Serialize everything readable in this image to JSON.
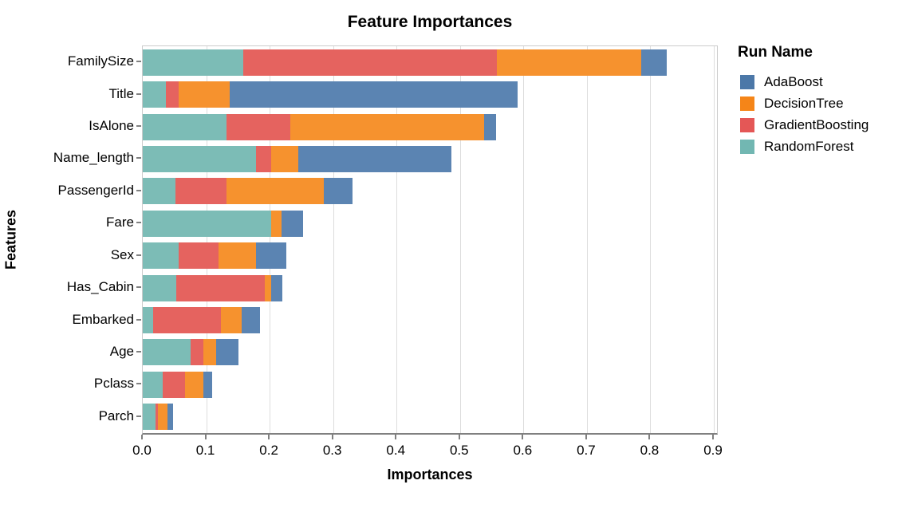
{
  "chart_data": {
    "type": "bar",
    "orientation": "horizontal",
    "stacked": true,
    "title": "Feature Importances",
    "xlabel": "Importances",
    "ylabel": "Features",
    "legend_title": "Run Name",
    "grid": true,
    "legend_position": "right",
    "xlim": [
      0,
      0.905
    ],
    "xticks": [
      0.0,
      0.1,
      0.2,
      0.3,
      0.4,
      0.5,
      0.6,
      0.7,
      0.8,
      0.9
    ],
    "categories": [
      "FamilySize",
      "Title",
      "IsAlone",
      "Name_length",
      "PassengerId",
      "Fare",
      "Sex",
      "Has_Cabin",
      "Embarked",
      "Age",
      "Pclass",
      "Parch"
    ],
    "series": [
      {
        "name": "RandomForest",
        "bar_color": "#7cbcb6",
        "values": [
          0.158,
          0.036,
          0.132,
          0.178,
          0.052,
          0.202,
          0.057,
          0.053,
          0.016,
          0.075,
          0.032,
          0.02
        ]
      },
      {
        "name": "GradientBoosting",
        "bar_color": "#e5635f",
        "values": [
          0.4,
          0.021,
          0.1,
          0.024,
          0.08,
          0.0,
          0.062,
          0.139,
          0.107,
          0.021,
          0.034,
          0.004
        ]
      },
      {
        "name": "DecisionTree",
        "bar_color": "#f6922e",
        "values": [
          0.228,
          0.08,
          0.306,
          0.043,
          0.153,
          0.017,
          0.06,
          0.01,
          0.033,
          0.02,
          0.029,
          0.015
        ]
      },
      {
        "name": "AdaBoost",
        "bar_color": "#5b84b2",
        "values": [
          0.04,
          0.454,
          0.019,
          0.242,
          0.045,
          0.034,
          0.047,
          0.018,
          0.029,
          0.035,
          0.015,
          0.009
        ]
      }
    ],
    "legend": [
      {
        "label": "AdaBoost",
        "color": "#4c78a8"
      },
      {
        "label": "DecisionTree",
        "color": "#f58518"
      },
      {
        "label": "GradientBoosting",
        "color": "#e45756"
      },
      {
        "label": "RandomForest",
        "color": "#72b7b2"
      }
    ],
    "colors": {
      "gridline": "#dddddd",
      "axis": "#808080",
      "plot_border": "#cccccc"
    }
  }
}
